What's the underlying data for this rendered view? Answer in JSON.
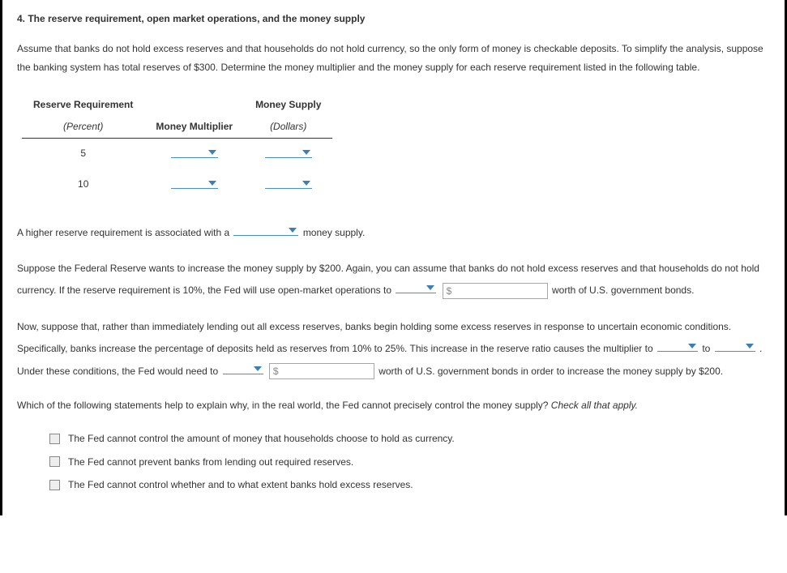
{
  "title": "4. The reserve requirement, open market operations, and the money supply",
  "intro": "Assume that banks do not hold excess reserves and that households do not hold currency, so the only form of money is checkable deposits. To simplify the analysis, suppose the banking system has total reserves of $300. Determine the money multiplier and the money supply for each reserve requirement listed in the following table.",
  "table": {
    "h_reserve": "Reserve Requirement",
    "h_money_supply": "Money Supply",
    "sub_percent": "(Percent)",
    "h_multiplier": "Money Multiplier",
    "sub_dollars": "(Dollars)",
    "row1_percent": "5",
    "row2_percent": "10"
  },
  "line_higher_a": "A higher reserve requirement is associated with a ",
  "line_higher_b": " money supply.",
  "para_fed": "Suppose the Federal Reserve wants to increase the money supply by $200. Again, you can assume that banks do not hold excess reserves and that households do not hold currency. If the reserve requirement is 10%, the Fed will use open-market operations to ",
  "para_fed_tail": " worth of U.S. government bonds.",
  "dollar_placeholder": "$",
  "para_now_a": "Now, suppose that, rather than immediately lending out all excess reserves, banks begin holding some excess reserves in response to uncertain economic conditions. Specifically, banks increase the percentage of deposits held as reserves from 10% to 25%. This increase in the reserve ratio causes the multiplier to ",
  "para_now_to": " to ",
  "para_now_b": " . Under these conditions, the Fed would need to ",
  "para_now_tail": " worth of U.S. government bonds in order to increase the money supply by $200.",
  "q_which_a": "Which of the following statements help to explain why, in the real world, the Fed cannot precisely control the money supply? ",
  "q_which_b": "Check all that apply.",
  "opt1": "The Fed cannot control the amount of money that households choose to hold as currency.",
  "opt2": "The Fed cannot prevent banks from lending out required reserves.",
  "opt3": "The Fed cannot control whether and to what extent banks hold excess reserves.",
  "colors": {
    "dropdown_underline": "#4a8fc7",
    "dropdown_arrow": "#3b7fb5",
    "text": "#333333",
    "border": "#000000"
  }
}
